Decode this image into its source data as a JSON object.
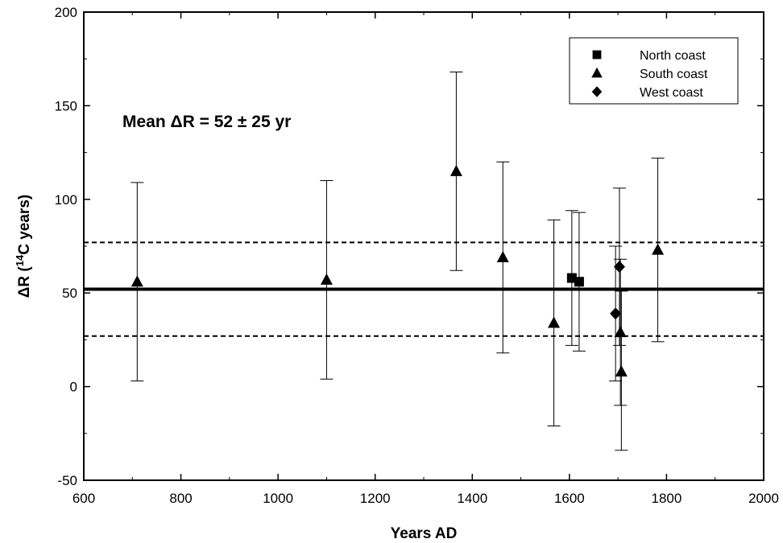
{
  "chart_data": {
    "type": "scatter",
    "title": "",
    "xlabel": "Years AD",
    "ylabel_parts": {
      "before": "ΔR (",
      "superscript": "14",
      "after": "C years)"
    },
    "xlim": [
      600,
      2000
    ],
    "ylim": [
      -50,
      200
    ],
    "x_ticks": [
      "600",
      "800",
      "1000",
      "1200",
      "1400",
      "1600",
      "1800",
      "2000"
    ],
    "y_ticks": [
      "-50",
      "0",
      "50",
      "100",
      "150",
      "200"
    ],
    "annotation": "Mean ΔR = 52 ± 25 yr",
    "legend_position": "top-right",
    "reference_lines": [
      {
        "y": 52,
        "style": "solid",
        "label": "mean"
      },
      {
        "y": 77,
        "style": "dashed",
        "label": "mean + 25"
      },
      {
        "y": 27,
        "style": "dashed",
        "label": "mean - 25"
      }
    ],
    "series": [
      {
        "name": "North coast",
        "marker": "square",
        "points": [
          {
            "x": 1605,
            "y": 58,
            "err_low": 22,
            "err_high": 94
          },
          {
            "x": 1620,
            "y": 56,
            "err_low": 19,
            "err_high": 93
          }
        ]
      },
      {
        "name": "South coast",
        "marker": "triangle",
        "points": [
          {
            "x": 710,
            "y": 56,
            "err_low": 3,
            "err_high": 109
          },
          {
            "x": 1100,
            "y": 57,
            "err_low": 4,
            "err_high": 110
          },
          {
            "x": 1367,
            "y": 115,
            "err_low": 62,
            "err_high": 168
          },
          {
            "x": 1463,
            "y": 69,
            "err_low": 18,
            "err_high": 120
          },
          {
            "x": 1568,
            "y": 34,
            "err_low": -21,
            "err_high": 89
          },
          {
            "x": 1705,
            "y": 29,
            "err_low": -10,
            "err_high": 68
          },
          {
            "x": 1707,
            "y": 8,
            "err_low": -34,
            "err_high": 51
          },
          {
            "x": 1782,
            "y": 73,
            "err_low": 24,
            "err_high": 122
          }
        ]
      },
      {
        "name": "West coast",
        "marker": "diamond",
        "points": [
          {
            "x": 1695,
            "y": 39,
            "err_low": 3,
            "err_high": 75
          },
          {
            "x": 1703,
            "y": 64,
            "err_low": 22,
            "err_high": 106
          }
        ]
      }
    ]
  }
}
